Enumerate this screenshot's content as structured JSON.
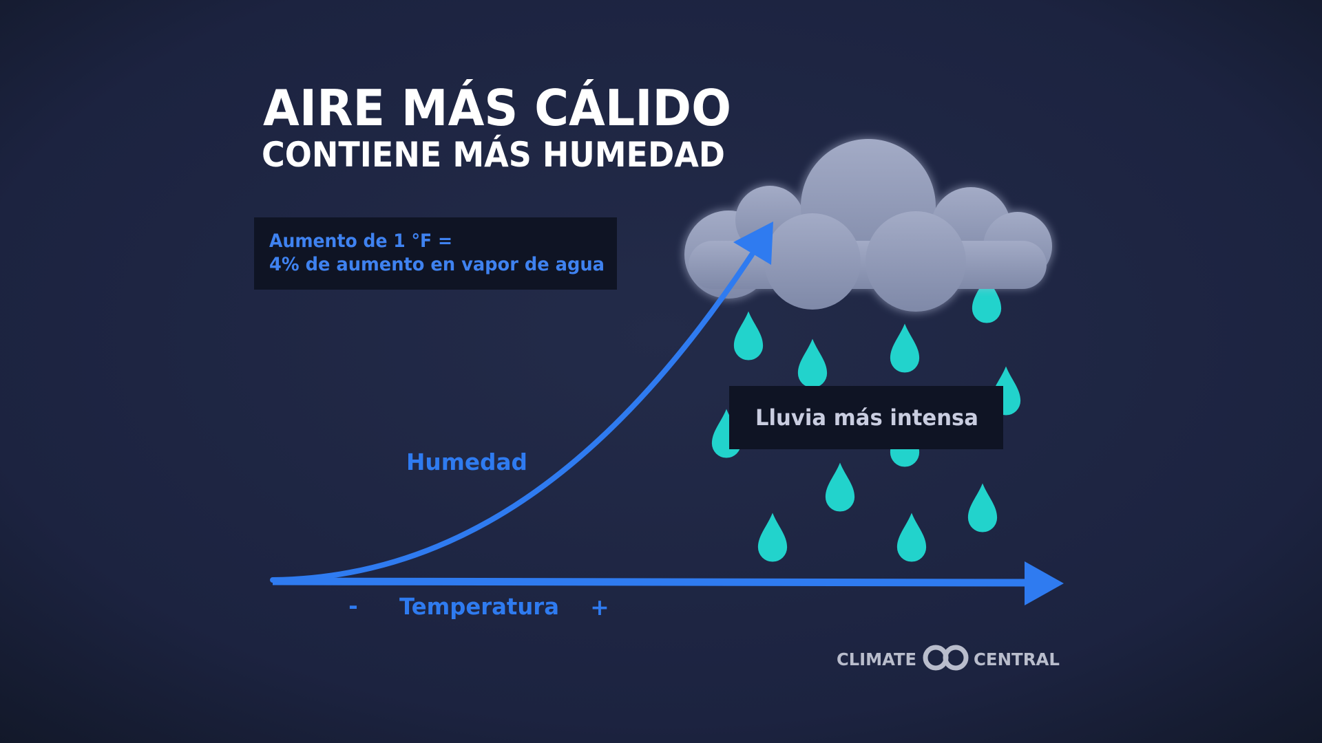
{
  "title": {
    "line1": "AIRE MÁS CÁLIDO",
    "line2": "CONTIENE MÁS HUMEDAD"
  },
  "info_box": {
    "line1": "Aumento de 1 °F =",
    "line2": "4% de aumento en vapor de agua"
  },
  "curve_label": "Humedad",
  "x_axis": {
    "label": "Temperatura",
    "low": "-",
    "high": "+"
  },
  "rain_box": "Lluvia más intensa",
  "logo": {
    "left": "CLIMATE",
    "right": "CENTRAL"
  }
}
